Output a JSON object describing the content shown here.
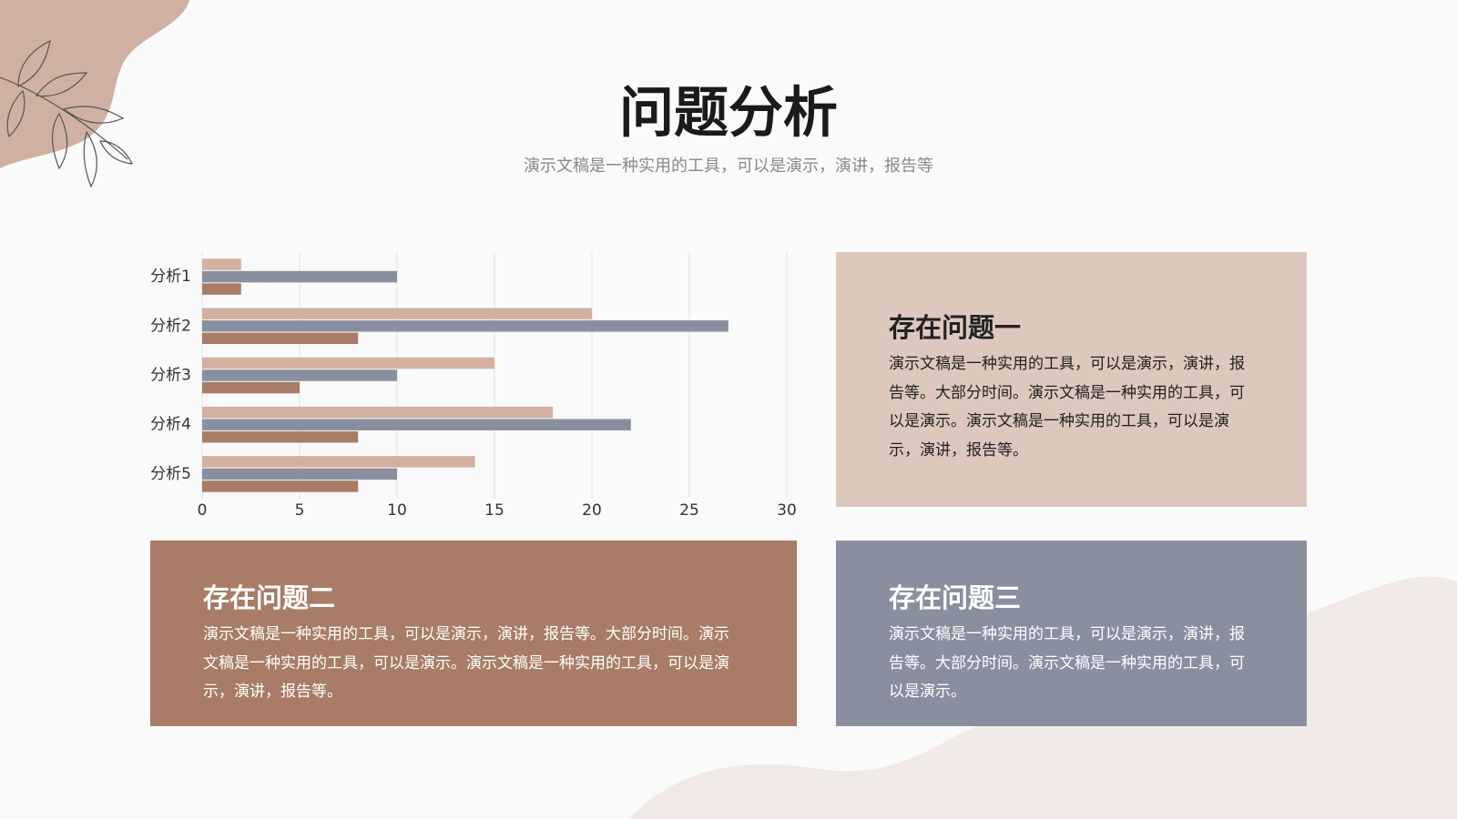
{
  "header": {
    "title": "问题分析",
    "subtitle": "演示文稿是一种实用的工具，可以是演示，演讲，报告等"
  },
  "cards": [
    {
      "title": "存在问题一",
      "body": "演示文稿是一种实用的工具，可以是演示，演讲，报告等。大部分时间。演示文稿是一种实用的工具，可以是演示。演示文稿是一种实用的工具，可以是演示，演讲，报告等。"
    },
    {
      "title": "存在问题二",
      "body": "演示文稿是一种实用的工具，可以是演示，演讲，报告等。大部分时间。演示文稿是一种实用的工具，可以是演示。演示文稿是一种实用的工具，可以是演示，演讲，报告等。"
    },
    {
      "title": "存在问题三",
      "body": "演示文稿是一种实用的工具，可以是演示，演讲，报告等。大部分时间。演示文稿是一种实用的工具，可以是演示。"
    }
  ],
  "chart_data": {
    "type": "bar",
    "orientation": "horizontal",
    "categories": [
      "分析1",
      "分析2",
      "分析3",
      "分析4",
      "分析5"
    ],
    "series": [
      {
        "color": "#d4b0a0",
        "values": [
          2,
          20,
          15,
          18,
          14
        ]
      },
      {
        "color": "#8a8fa0",
        "values": [
          10,
          27,
          10,
          22,
          10
        ]
      },
      {
        "color": "#a87c66",
        "values": [
          2,
          8,
          5,
          8,
          8
        ]
      }
    ],
    "xlim": [
      0,
      30
    ],
    "xticks": [
      0,
      5,
      10,
      15,
      20,
      25,
      30
    ],
    "grid": true
  }
}
